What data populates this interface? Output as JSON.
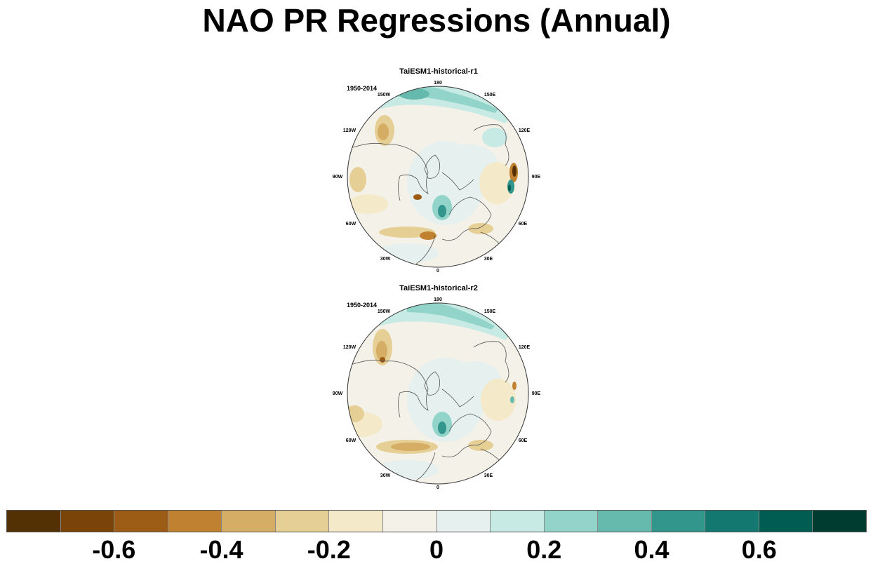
{
  "title": "NAO PR Regressions (Annual)",
  "panels": [
    {
      "title": "TaiESM1-historical-r1",
      "period": "1950-2014"
    },
    {
      "title": "TaiESM1-historical-r2",
      "period": "1950-2014"
    }
  ],
  "longitude_labels": [
    "180",
    "150E",
    "120E",
    "90E",
    "60E",
    "30E",
    "0",
    "30W",
    "60W",
    "90W",
    "120W",
    "150W"
  ],
  "colorbar": {
    "colors": [
      "#543005",
      "#7a4308",
      "#9c5c16",
      "#c08230",
      "#d6ad65",
      "#e6cf95",
      "#f4e9c8",
      "#f4f1e8",
      "#e5f0ef",
      "#c8eae4",
      "#92d4ca",
      "#66b9ad",
      "#33968d",
      "#127870",
      "#015c51",
      "#003c30"
    ],
    "tick_labels": [
      "-0.6",
      "-0.4",
      "-0.2",
      "0",
      "0.2",
      "0.4",
      "0.6"
    ]
  }
}
